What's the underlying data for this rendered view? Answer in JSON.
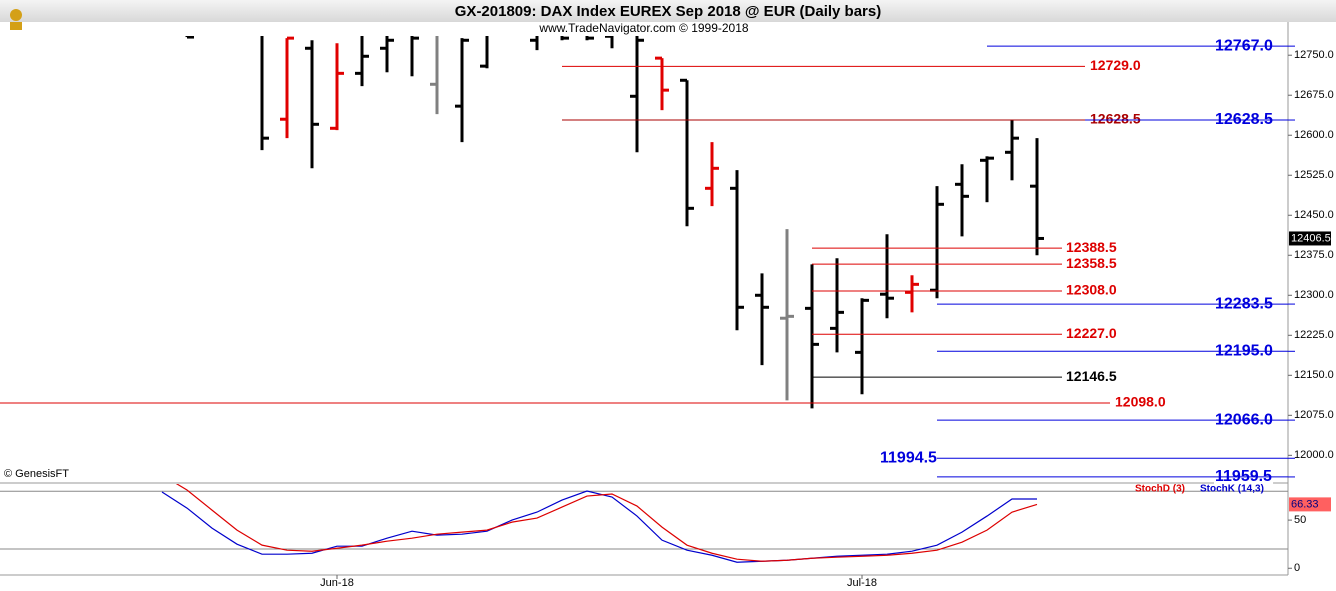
{
  "chart_data": [
    {
      "type": "ohlc",
      "title": "GX-201809:  DAX Index EUREX Sep 2018 @ EUR  (Daily bars)",
      "subtitle": "www.TradeNavigator.com © 1999-2018",
      "copyright": "© GenesisFT",
      "open": [
        null,
        12797,
        null,
        null,
        12797,
        12630,
        12763,
        12613,
        12716,
        12763,
        12797,
        12695.5,
        12654.5,
        12729.5,
        12806,
        12778,
        12797,
        12797,
        12785.5,
        12673,
        12744.5,
        12703,
        12500.5,
        12500.5,
        12300,
        12257,
        12275.5,
        12238,
        12193,
        12302,
        12305.5,
        12309.5,
        12508,
        12553,
        12568,
        12504.5
      ],
      "high": [
        null,
        12815.5,
        null,
        null,
        12815.5,
        12782,
        12778,
        12772.5,
        12815.5,
        12815.5,
        12815.5,
        12815.5,
        12782,
        12815.5,
        12834.5,
        12815.5,
        12815.5,
        12815.5,
        12815.5,
        12815.5,
        12744.5,
        12703,
        12587,
        12534.5,
        12341,
        12424,
        12358,
        12369.5,
        12294.5,
        12414.5,
        12337.5,
        12504.5,
        12545.5,
        12560.5,
        12628,
        12594.5
      ],
      "low": [
        null,
        12784,
        null,
        null,
        12572,
        12594.5,
        12538,
        12609.5,
        12692,
        12718,
        12710.5,
        12639.5,
        12587,
        12725.5,
        12797,
        12759.5,
        12778,
        12778,
        12763,
        12568,
        12647,
        12429.5,
        12467,
        12234.5,
        12169,
        12103,
        12088,
        12193,
        12114.5,
        12257,
        12268,
        12294.5,
        12410.5,
        12474.5,
        12515.5,
        12375
      ],
      "close": [
        null,
        12784,
        null,
        null,
        12594.5,
        12782,
        12620.5,
        12716,
        12748,
        12778,
        12782,
        12797,
        12778,
        12797,
        12825,
        12797,
        12782,
        12782,
        12797,
        12778,
        12684.5,
        12463,
        12538,
        12277.5,
        12277.5,
        12260.5,
        12208,
        12268,
        12290.5,
        12294.5,
        12320.5,
        12470.5,
        12485.5,
        12557,
        12594.5,
        12406.5
      ],
      "colors": [
        null,
        "#000000",
        null,
        null,
        "#000000",
        "#e00000",
        "#000000",
        "#e00000",
        "#000000",
        "#000000",
        "#000000",
        "#808080",
        "#000000",
        "#000000",
        "#000000",
        "#000000",
        "#000000",
        "#000000",
        "#000000",
        "#000000",
        "#e00000",
        "#000000",
        "#e00000",
        "#000000",
        "#000000",
        "#808080",
        "#000000",
        "#000000",
        "#000000",
        "#000000",
        "#e00000",
        "#000000",
        "#000000",
        "#000000",
        "#000000",
        "#000000"
      ],
      "levels": [
        {
          "value": 12767.0,
          "label": "12767.0",
          "color": "#0000dd"
        },
        {
          "value": 12729.0,
          "label": "12729.0",
          "color": "#dd0000"
        },
        {
          "value": 12628.5,
          "label": "12628.5",
          "color": "#aa0000"
        },
        {
          "value": 12628.5,
          "label": "12628.5",
          "color": "#0000dd"
        },
        {
          "value": 12388.5,
          "label": "12388.5",
          "color": "#dd0000"
        },
        {
          "value": 12358.5,
          "label": "12358.5",
          "color": "#dd0000"
        },
        {
          "value": 12308.0,
          "label": "12308.0",
          "color": "#dd0000"
        },
        {
          "value": 12283.5,
          "label": "12283.5",
          "color": "#0000dd"
        },
        {
          "value": 12227.0,
          "label": "12227.0",
          "color": "#dd0000"
        },
        {
          "value": 12195.0,
          "label": "12195.0",
          "color": "#0000dd"
        },
        {
          "value": 12146.5,
          "label": "12146.5",
          "color": "#000000"
        },
        {
          "value": 12098.0,
          "label": "12098.0",
          "color": "#dd0000"
        },
        {
          "value": 12066.0,
          "label": "12066.0",
          "color": "#0000dd"
        },
        {
          "value": 11994.5,
          "label": "11994.5",
          "color": "#0000dd"
        },
        {
          "value": 11959.5,
          "label": "11959.5",
          "color": "#0000dd"
        }
      ],
      "ylim": [
        11950,
        12786
      ],
      "yticks": [
        {
          "value": 12000,
          "label": "12000.0"
        },
        {
          "value": 12075,
          "label": "12075.0"
        },
        {
          "value": 12150,
          "label": "12150.0"
        },
        {
          "value": 12225,
          "label": "12225.0"
        },
        {
          "value": 12300,
          "label": "12300.0"
        },
        {
          "value": 12375,
          "label": "12375.0"
        },
        {
          "value": 12450,
          "label": "12450.0"
        },
        {
          "value": 12525,
          "label": "12525.0"
        },
        {
          "value": 12600,
          "label": "12600.0"
        },
        {
          "value": 12675,
          "label": "12675.0"
        },
        {
          "value": 12750,
          "label": "12750.0"
        }
      ]
    },
    {
      "type": "line",
      "categories": [
        null,
        null,
        null,
        null,
        null,
        null,
        null,
        "Jun-18",
        null,
        null,
        null,
        null,
        null,
        null,
        null,
        null,
        null,
        null,
        null,
        null,
        null,
        null,
        null,
        null,
        null,
        null,
        null,
        null,
        "Jul-18",
        null,
        null,
        null,
        null,
        null,
        null,
        null
      ],
      "series": [
        {
          "name": "StochK (14,3)",
          "color": "#0000cc",
          "values": [
            79.2,
            62.5,
            41.7,
            25,
            14.6,
            14.6,
            15.6,
            22.9,
            22.9,
            31.25,
            38.5,
            34.4,
            35.4,
            38.5,
            50,
            58.3,
            70.8,
            80.2,
            74,
            54.2,
            29.2,
            18.75,
            13.5,
            6.25,
            7.3,
            8.3,
            10.4,
            12.5,
            13.5,
            14.6,
            17.7,
            24,
            37.5,
            54.2,
            71.9,
            71.9
          ]
        },
        {
          "name": "StochD (3)",
          "color": "#dd0000",
          "values": [
            96.9,
            81.25,
            60.4,
            39.6,
            24,
            18.75,
            17.7,
            20.8,
            24,
            28.1,
            31.25,
            35.4,
            37.5,
            39.6,
            47.9,
            52.1,
            63.5,
            75,
            77.1,
            64.6,
            42.7,
            24,
            15.6,
            9.4,
            7.3,
            8.3,
            10.4,
            11.5,
            12.5,
            13.5,
            15.6,
            18.75,
            27.1,
            39.6,
            58.3,
            66.33
          ]
        }
      ],
      "hlines": [
        20,
        80
      ],
      "ylim": [
        -7,
        87.5
      ],
      "yticks": [
        0,
        50
      ]
    }
  ]
}
